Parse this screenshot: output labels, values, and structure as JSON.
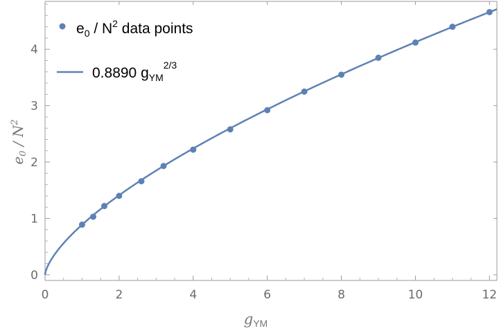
{
  "chart_data": {
    "type": "scatter",
    "title": "",
    "xlabel": {
      "main": "g",
      "sub": "YM"
    },
    "ylabel": {
      "main": "e",
      "sub": "0",
      "rest": " / N",
      "sup": "2"
    },
    "xlim": [
      0,
      12.2
    ],
    "ylim": [
      -0.1,
      4.85
    ],
    "xticks": [
      0,
      2,
      4,
      6,
      8,
      10,
      12
    ],
    "yticks": [
      0,
      1,
      2,
      3,
      4
    ],
    "xtick_labels": [
      "0",
      "2",
      "4",
      "6",
      "8",
      "10",
      "12"
    ],
    "ytick_labels": [
      "0",
      "1",
      "2",
      "3",
      "4"
    ],
    "grid": false,
    "legend_position": "top-left",
    "color": "#5e81b5",
    "series": [
      {
        "kind": "points",
        "legend": {
          "main": "e",
          "sub": "0",
          "mid": " / N",
          "sup": "2",
          "rest": " data points"
        },
        "x": [
          1.0,
          1.3,
          1.6,
          2.0,
          2.6,
          3.2,
          4.0,
          5.0,
          6.0,
          7.0,
          8.0,
          9.0,
          10.0,
          11.0,
          12.0
        ],
        "y": [
          0.89,
          1.03,
          1.22,
          1.4,
          1.66,
          1.93,
          2.22,
          2.58,
          2.92,
          3.25,
          3.55,
          3.85,
          4.12,
          4.4,
          4.66
        ]
      },
      {
        "kind": "curve",
        "legend": {
          "main": "0.8890 g",
          "sub": "YM",
          "sup": "2/3"
        },
        "coefficient": 0.889,
        "exponent": 0.6667,
        "x_range": [
          0,
          12.2
        ]
      }
    ]
  }
}
